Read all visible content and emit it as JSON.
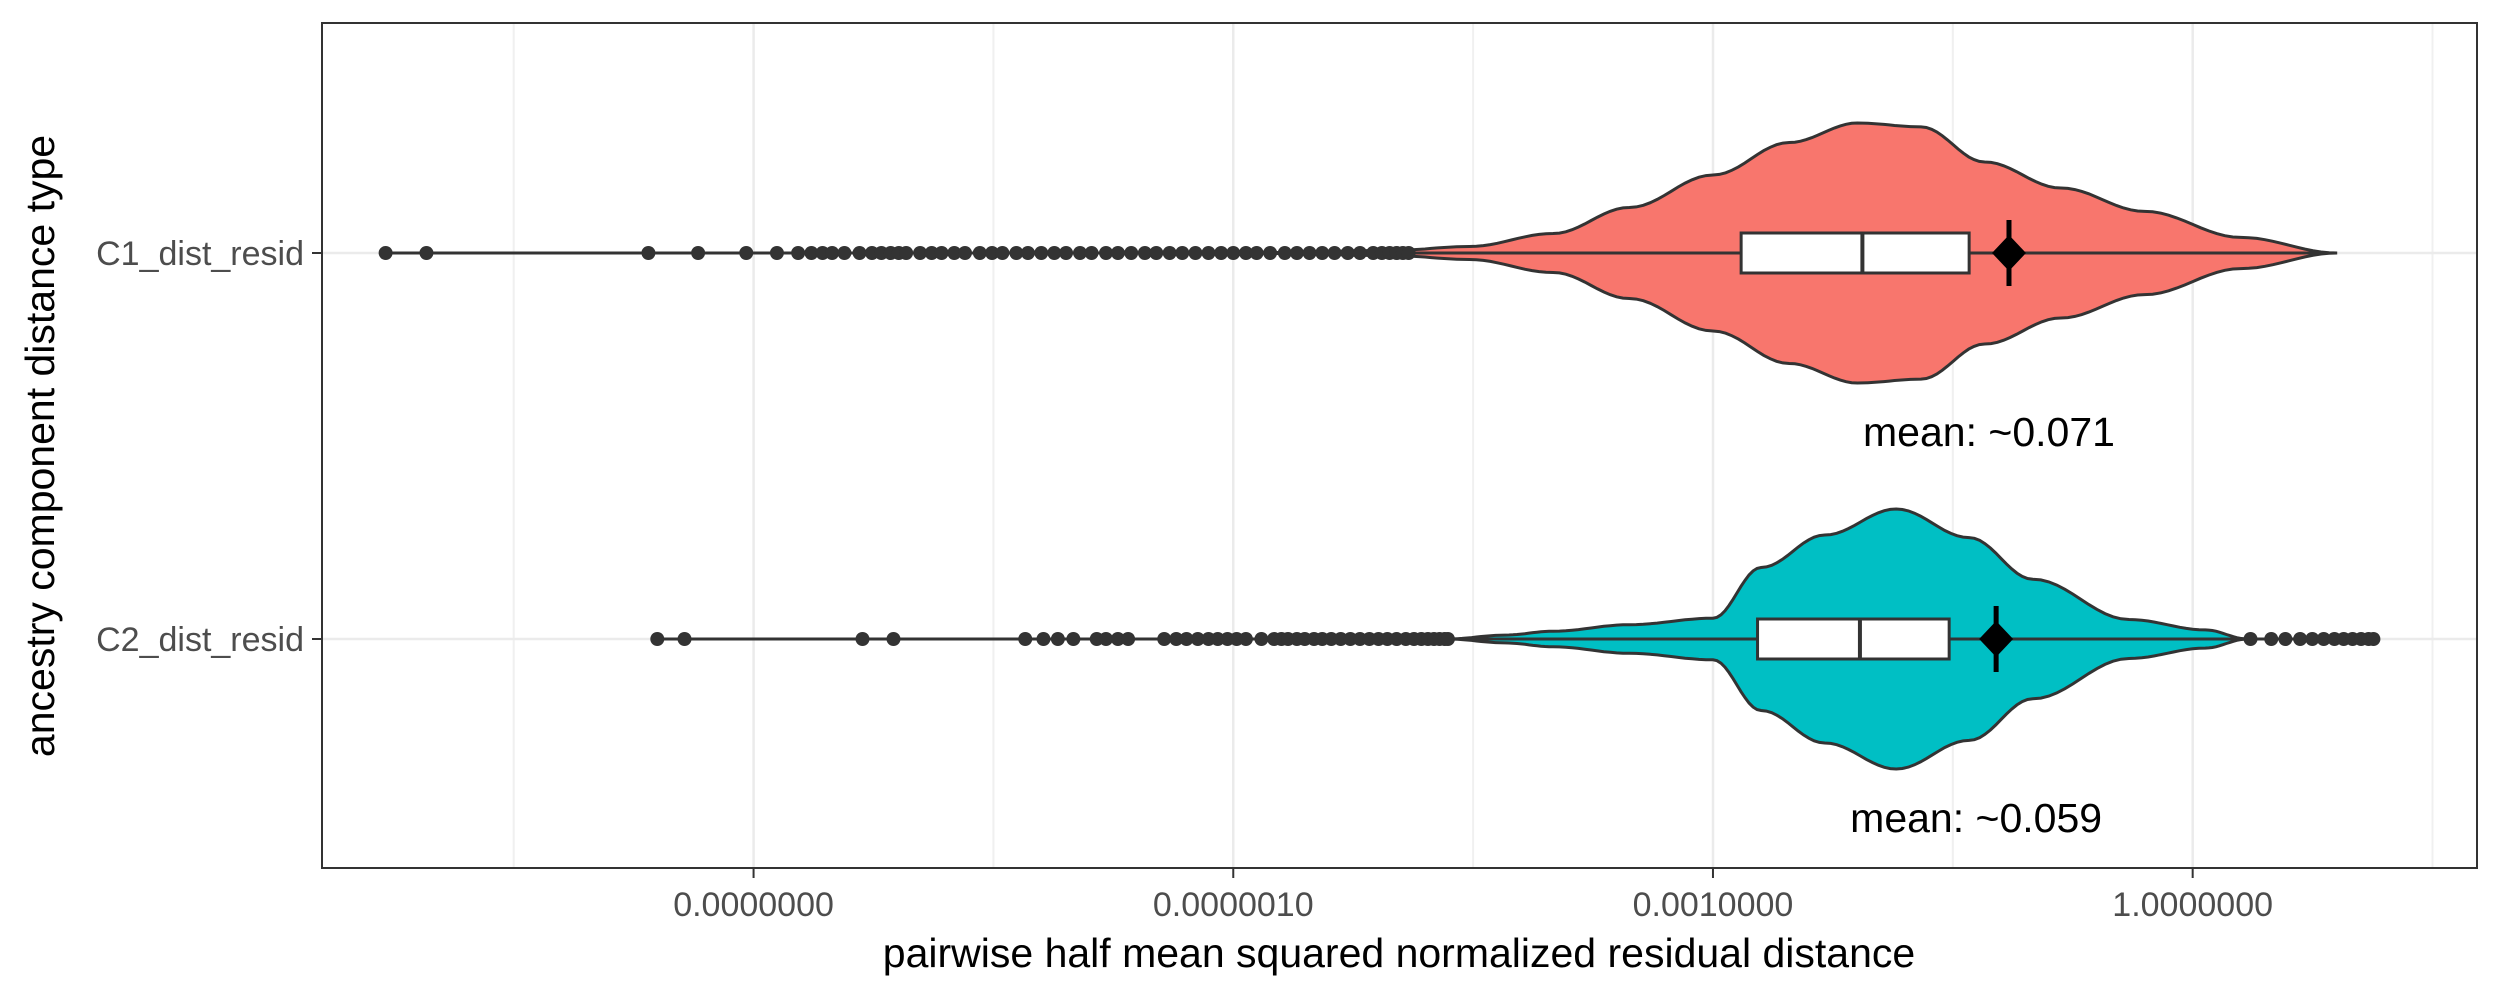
{
  "chart_data": {
    "type": "violin",
    "orientation": "horizontal",
    "xlabel": "pairwise half mean squared normalized residual distance",
    "ylabel": "ancestry component distance type",
    "x_scale": "log10",
    "x_ticks": [
      {
        "value": 1e-09,
        "label": "0.0000000"
      },
      {
        "value": 1e-06,
        "label": "0.0000010"
      },
      {
        "value": 0.001,
        "label": "0.0010000"
      },
      {
        "value": 1,
        "label": "1.0000000"
      }
    ],
    "xlim": [
      2e-12,
      60
    ],
    "grid": true,
    "legend": "none",
    "categories": [
      "C1_dist_resid",
      "C2_dist_resid"
    ],
    "series": [
      {
        "category": "C1_dist_resid",
        "color": "#F8766D",
        "min": 5e-12,
        "max": 8,
        "q1": 0.0015,
        "median": 0.0086,
        "q3": 0.04,
        "mean": 0.071,
        "mean_label": "mean: ~0.071",
        "violin_profile": [
          [
            1e-06,
            0.0
          ],
          [
            1e-05,
            0.02
          ],
          [
            3e-05,
            0.05
          ],
          [
            0.0001,
            0.15
          ],
          [
            0.0003,
            0.35
          ],
          [
            0.001,
            0.6
          ],
          [
            0.003,
            0.85
          ],
          [
            0.008,
            1.0
          ],
          [
            0.02,
            0.97
          ],
          [
            0.05,
            0.7
          ],
          [
            0.15,
            0.5
          ],
          [
            0.5,
            0.32
          ],
          [
            2,
            0.12
          ],
          [
            8,
            0.0
          ]
        ],
        "outliers": [
          5e-12,
          9e-12,
          2.2e-10,
          4.5e-10,
          9e-10,
          1.4e-09,
          1.9e-09,
          2.3e-09,
          2.7e-09,
          3.1e-09,
          3.7e-09,
          4.6e-09,
          5.5e-09,
          6.3e-09,
          7.2e-09,
          8.1e-09,
          9e-09,
          1.1e-08,
          1.3e-08,
          1.5e-08,
          1.8e-08,
          2.1e-08,
          2.6e-08,
          3.1e-08,
          3.6e-08,
          4.4e-08,
          5.2e-08,
          6.3e-08,
          7.6e-08,
          9e-08,
          1.1e-07,
          1.3e-07,
          1.6e-07,
          1.9e-07,
          2.3e-07,
          2.8e-07,
          3.3e-07,
          4e-07,
          4.8e-07,
          5.8e-07,
          7e-07,
          8.4e-07,
          1e-06,
          1.2e-06,
          1.4e-06,
          1.7e-06,
          2.1e-06,
          2.5e-06,
          3e-06,
          3.6e-06,
          4.3e-06,
          5.2e-06,
          6.2e-06,
          7.5e-06,
          8.5e-06,
          9.5e-06,
          1.05e-05,
          1.15e-05,
          1.25e-05
        ]
      },
      {
        "category": "C2_dist_resid",
        "color": "#00BFC4",
        "min": 2.5e-10,
        "max": 14,
        "q1": 0.0019,
        "median": 0.0083,
        "q3": 0.03,
        "mean": 0.059,
        "mean_label": "mean: ~0.059",
        "violin_profile": [
          [
            2.2e-05,
            0.0
          ],
          [
            5e-05,
            0.03
          ],
          [
            0.0001,
            0.06
          ],
          [
            0.0003,
            0.11
          ],
          [
            0.001,
            0.16
          ],
          [
            0.002,
            0.55
          ],
          [
            0.005,
            0.8
          ],
          [
            0.014,
            1.0
          ],
          [
            0.04,
            0.78
          ],
          [
            0.1,
            0.46
          ],
          [
            0.4,
            0.15
          ],
          [
            1.2,
            0.07
          ],
          [
            2.2,
            0.0
          ]
        ],
        "outliers": [
          2.5e-10,
          3.7e-10,
          4.8e-09,
          7.5e-09,
          5e-08,
          6.5e-08,
          8e-08,
          1e-07,
          1.4e-07,
          1.6e-07,
          1.9e-07,
          2.2e-07,
          3.7e-07,
          4.4e-07,
          5.1e-07,
          6e-07,
          7e-07,
          8e-07,
          9.2e-07,
          1.05e-06,
          1.2e-06,
          1.5e-06,
          1.8e-06,
          2e-06,
          2.2e-06,
          2.5e-06,
          2.8e-06,
          3.2e-06,
          3.6e-06,
          4.1e-06,
          4.7e-06,
          5.4e-06,
          6.2e-06,
          7.1e-06,
          8.1e-06,
          9.2e-06,
          1.05e-05,
          1.2e-05,
          1.35e-05,
          1.5e-05,
          1.65e-05,
          1.8e-05,
          1.95e-05,
          2.1e-05,
          2.2e-05,
          2.3,
          3.1,
          3.8,
          4.7,
          5.6,
          6.6,
          7.7,
          8.8,
          10,
          11.3,
          12.6,
          13.5
        ]
      }
    ]
  }
}
